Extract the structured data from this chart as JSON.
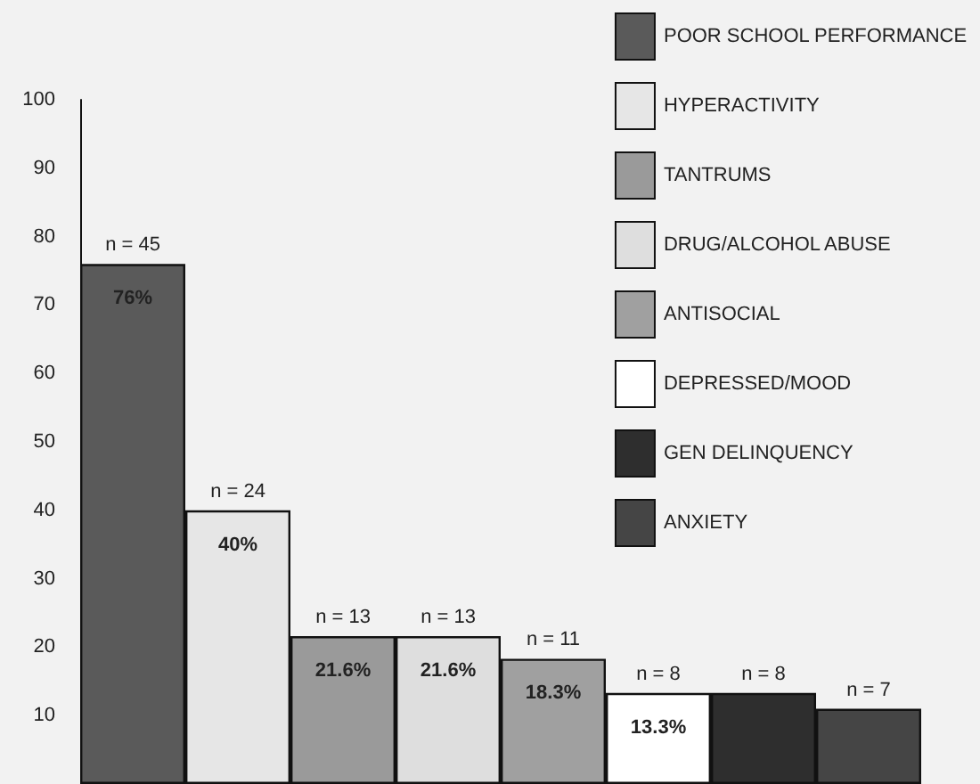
{
  "chart_data": {
    "type": "bar",
    "stacked": true,
    "categories": [
      null,
      null,
      null,
      null,
      null,
      null,
      null,
      null
    ],
    "series": [
      {
        "name": "POOR SCHOOL PERFORMANCE",
        "color": "#5a5a5a",
        "values": [
          76,
          null,
          null,
          null,
          null,
          null,
          null,
          null
        ],
        "value_labels": [
          "76%",
          null,
          null,
          null,
          null,
          null,
          null,
          null
        ]
      },
      {
        "name": "HYPERACTIVITY",
        "color": "#e6e6e6",
        "values": [
          null,
          40,
          null,
          null,
          null,
          null,
          null,
          null
        ],
        "value_labels": [
          null,
          "40%",
          null,
          null,
          null,
          null,
          null,
          null
        ]
      },
      {
        "name": "TANTRUMS",
        "color": "#9a9a9a",
        "values": [
          null,
          null,
          21.6,
          null,
          null,
          null,
          null,
          null
        ],
        "value_labels": [
          null,
          null,
          "21.6%",
          null,
          null,
          null,
          null,
          null
        ]
      },
      {
        "name": "DRUG/ALCOHOL ABUSE",
        "color": "#dedede",
        "values": [
          null,
          null,
          null,
          21.6,
          null,
          null,
          null,
          null
        ],
        "value_labels": [
          null,
          null,
          null,
          "21.6%",
          null,
          null,
          null,
          null
        ]
      },
      {
        "name": "ANTISOCIAL",
        "color": "#a0a0a0",
        "values": [
          null,
          null,
          null,
          null,
          18.3,
          null,
          null,
          null
        ],
        "value_labels": [
          null,
          null,
          null,
          null,
          "18.3%",
          null,
          null,
          null
        ]
      },
      {
        "name": "DEPRESSED/MOOD",
        "color": "#ffffff",
        "values": [
          null,
          null,
          null,
          null,
          null,
          13.3,
          null,
          null
        ],
        "value_labels": [
          null,
          null,
          null,
          null,
          null,
          "13.3%",
          null,
          null
        ]
      },
      {
        "name": "GEN DELINQUENCY",
        "color": "#2e2e2e",
        "values": [
          null,
          null,
          null,
          null,
          null,
          null,
          13.3,
          null
        ]
      },
      {
        "name": "ANXIETY",
        "color": "#454545",
        "values": [
          null,
          null,
          null,
          null,
          null,
          null,
          null,
          11
        ]
      }
    ],
    "ylim": [
      0,
      100
    ],
    "yticks": [
      10,
      20,
      30,
      40,
      50,
      60,
      70,
      80,
      90,
      100
    ],
    "tick_labels": "y",
    "grid": false,
    "legend": "top right",
    "annotations": [
      {
        "text": "n = 45",
        "y": 76
      },
      {
        "text": "n = 24",
        "y": 40
      },
      {
        "text": "n = 13",
        "y": 21.6
      },
      {
        "text": "n = 13",
        "y": 21.6
      },
      {
        "text": "n = 11",
        "y": 18.3
      },
      {
        "text": "n = 8",
        "y": 13.3
      },
      {
        "text": "n = 8",
        "y": 13.3
      },
      {
        "text": "n = 7",
        "y": 11
      }
    ]
  }
}
